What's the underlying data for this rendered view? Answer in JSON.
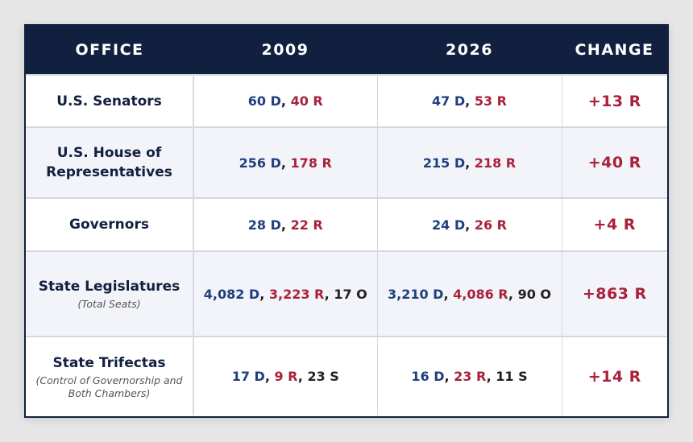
{
  "header": {
    "office": "OFFICE",
    "y1": "2009",
    "y2": "2026",
    "change": "CHANGE"
  },
  "colors": {
    "header_bg": "#12203f",
    "democrat": "#1f3f7e",
    "republican": "#a8223a",
    "other": "#222222",
    "alt_row": "#f3f4f9"
  },
  "rows": [
    {
      "office": "U.S. Senators",
      "sub": "",
      "y1": {
        "d": "60 D",
        "r": "40 R"
      },
      "y2": {
        "d": "47 D",
        "r": "53 R"
      },
      "change": "+13 R"
    },
    {
      "office": "U.S. House of Representatives",
      "sub": "",
      "y1": {
        "d": "256 D",
        "r": "178 R"
      },
      "y2": {
        "d": "215 D",
        "r": "218 R"
      },
      "change": "+40 R"
    },
    {
      "office": "Governors",
      "sub": "",
      "y1": {
        "d": "28 D",
        "r": "22 R"
      },
      "y2": {
        "d": "24 D",
        "r": "26 R"
      },
      "change": "+4 R"
    },
    {
      "office": "State Legislatures",
      "sub": "(Total Seats)",
      "y1": {
        "d": "4,082 D",
        "r": "3,223 R",
        "o": "17 O"
      },
      "y2": {
        "d": "3,210 D",
        "r": "4,086 R",
        "o": "90 O"
      },
      "change": "+863 R"
    },
    {
      "office": "State Trifectas",
      "sub": "(Control of Governorship and Both Chambers)",
      "y1": {
        "d": "17 D",
        "r": "9 R",
        "o": "23 S"
      },
      "y2": {
        "d": "16 D",
        "r": "23 R",
        "o": "11 S"
      },
      "change": "+14 R"
    }
  ]
}
